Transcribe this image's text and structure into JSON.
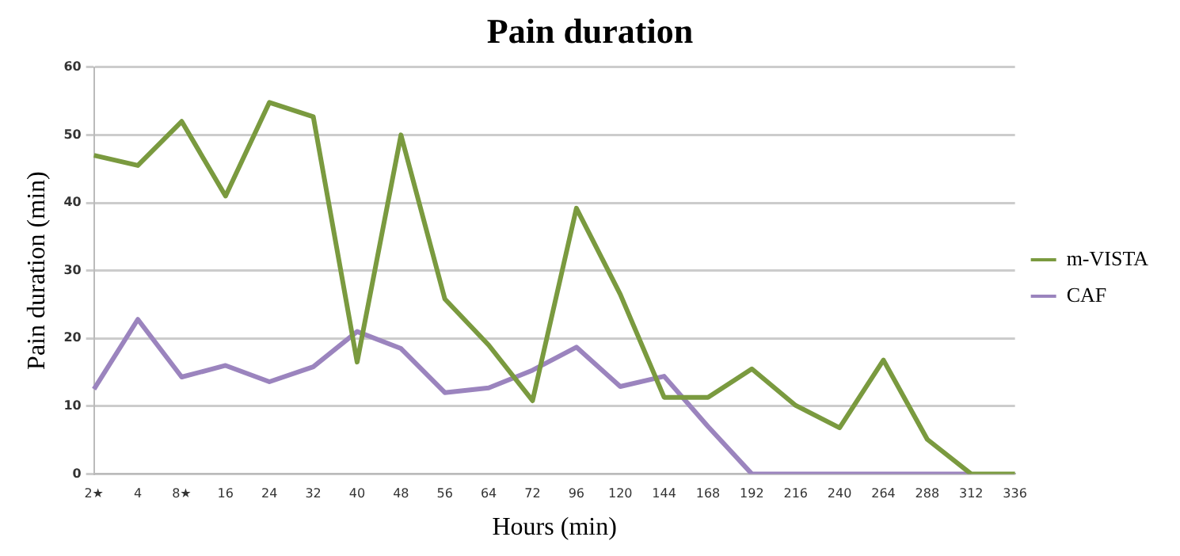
{
  "chart_data": {
    "type": "line",
    "title": "Pain duration",
    "xlabel": "Hours (min)",
    "ylabel": "Pain duration (min)",
    "categories": [
      "2★",
      "4",
      "8★",
      "16",
      "24",
      "32",
      "40",
      "48",
      "56",
      "64",
      "72",
      "96",
      "120",
      "144",
      "168",
      "192",
      "216",
      "240",
      "264",
      "288",
      "312",
      "336"
    ],
    "series": [
      {
        "name": "m-VISTA",
        "color": "#7a9a3f",
        "values": [
          47,
          45.5,
          52,
          41,
          54.8,
          52.7,
          16.5,
          50,
          25.8,
          19,
          10.8,
          39.2,
          26.5,
          11.3,
          11.3,
          15.5,
          10.1,
          6.8,
          16.8,
          5.1,
          0,
          0
        ]
      },
      {
        "name": "CAF",
        "color": "#9b84be",
        "values": [
          12.5,
          22.8,
          14.3,
          16,
          13.6,
          15.8,
          21,
          18.5,
          12,
          12.7,
          15.3,
          18.7,
          12.9,
          14.4,
          7,
          0,
          0,
          0,
          0,
          0,
          0,
          null
        ]
      }
    ],
    "ylim": [
      0,
      60
    ],
    "yticks": [
      0,
      10,
      20,
      30,
      40,
      50,
      60
    ],
    "grid": "y",
    "legend": "right",
    "marker": "none",
    "line_style": "solid"
  }
}
